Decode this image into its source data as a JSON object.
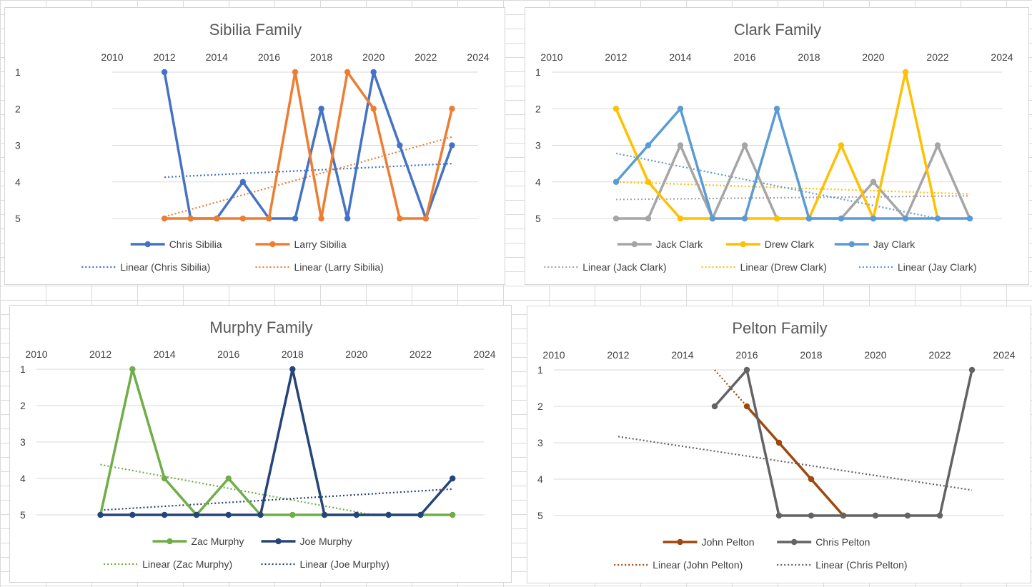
{
  "chart_data": [
    {
      "type": "line",
      "title": "Sibilia Family",
      "xlabel": "",
      "ylabel": "",
      "xlim": [
        2010,
        2024
      ],
      "ylim": [
        1,
        5
      ],
      "y_reversed": true,
      "x_ticks": [
        "2010",
        "2012",
        "2014",
        "2016",
        "2018",
        "2020",
        "2022",
        "2024"
      ],
      "y_ticks": [
        "1",
        "2",
        "3",
        "4",
        "5"
      ],
      "grid": true,
      "legend_position": "bottom",
      "series": [
        {
          "name": "Chris Sibilia",
          "color": "#4472c4",
          "x": [
            2012,
            2013,
            2014,
            2015,
            2016,
            2017,
            2018,
            2019,
            2020,
            2021,
            2022,
            2023
          ],
          "y": [
            1,
            5,
            5,
            4,
            5,
            5,
            2,
            5,
            1,
            3,
            5,
            3
          ]
        },
        {
          "name": "Larry Sibilia",
          "color": "#ed7d31",
          "x": [
            2012,
            2013,
            2014,
            2015,
            2016,
            2017,
            2018,
            2019,
            2020,
            2021,
            2022,
            2023
          ],
          "y": [
            5,
            5,
            5,
            5,
            5,
            1,
            5,
            1,
            2,
            5,
            5,
            2
          ]
        }
      ],
      "trendlines": [
        {
          "name": "Linear (Chris Sibilia)",
          "color": "#4472c4",
          "x": [
            2012,
            2023
          ],
          "y": [
            3.87,
            3.5
          ]
        },
        {
          "name": "Linear (Larry Sibilia)",
          "color": "#ed7d31",
          "x": [
            2012,
            2023
          ],
          "y": [
            4.95,
            2.77
          ]
        }
      ]
    },
    {
      "type": "line",
      "title": "Clark Family",
      "xlabel": "",
      "ylabel": "",
      "xlim": [
        2010,
        2024
      ],
      "ylim": [
        1,
        5
      ],
      "y_reversed": true,
      "x_ticks": [
        "2010",
        "2012",
        "2014",
        "2016",
        "2018",
        "2020",
        "2022",
        "2024"
      ],
      "y_ticks": [
        "1",
        "2",
        "3",
        "4",
        "5"
      ],
      "grid": true,
      "legend_position": "bottom",
      "series": [
        {
          "name": "Jack Clark",
          "color": "#a5a5a5",
          "x": [
            2012,
            2013,
            2014,
            2015,
            2016,
            2017,
            2018,
            2019,
            2020,
            2021,
            2022,
            2023
          ],
          "y": [
            5,
            5,
            3,
            5,
            3,
            5,
            5,
            5,
            4,
            5,
            3,
            5
          ]
        },
        {
          "name": "Drew Clark",
          "color": "#ffc000",
          "x": [
            2012,
            2013,
            2014,
            2015,
            2016,
            2017,
            2018,
            2019,
            2020,
            2021,
            2022
          ],
          "y": [
            2,
            4,
            5,
            5,
            5,
            5,
            5,
            3,
            5,
            1,
            5
          ]
        },
        {
          "name": "Jay Clark",
          "color": "#5b9bd5",
          "x": [
            2012,
            2013,
            2014,
            2015,
            2016,
            2017,
            2018,
            2019,
            2020,
            2021,
            2022,
            2023
          ],
          "y": [
            4,
            3,
            2,
            5,
            5,
            2,
            5,
            5,
            5,
            5,
            5,
            5
          ]
        }
      ],
      "trendlines": [
        {
          "name": "Linear (Jack Clark)",
          "color": "#a5a5a5",
          "x": [
            2012,
            2023
          ],
          "y": [
            4.48,
            4.38
          ]
        },
        {
          "name": "Linear (Drew Clark)",
          "color": "#ffc000",
          "x": [
            2012,
            2023
          ],
          "y": [
            4.0,
            4.33
          ]
        },
        {
          "name": "Linear (Jay Clark)",
          "color": "#5b9bd5",
          "x": [
            2012,
            2022
          ],
          "y": [
            3.22,
            5.0
          ]
        }
      ]
    },
    {
      "type": "line",
      "title": "Murphy Family",
      "xlabel": "",
      "ylabel": "",
      "xlim": [
        2010,
        2024
      ],
      "ylim": [
        1,
        5
      ],
      "y_reversed": true,
      "x_ticks": [
        "2010",
        "2012",
        "2014",
        "2016",
        "2018",
        "2020",
        "2022",
        "2024"
      ],
      "y_ticks": [
        "1",
        "2",
        "3",
        "4",
        "5"
      ],
      "grid": true,
      "legend_position": "bottom",
      "series": [
        {
          "name": "Zac Murphy",
          "color": "#70ad47",
          "x": [
            2012,
            2013,
            2014,
            2015,
            2016,
            2017,
            2018,
            2019,
            2020,
            2021,
            2022,
            2023
          ],
          "y": [
            5,
            1,
            4,
            5,
            4,
            5,
            5,
            5,
            5,
            5,
            5,
            5
          ]
        },
        {
          "name": "Joe Murphy",
          "color": "#264478",
          "x": [
            2012,
            2013,
            2014,
            2015,
            2016,
            2017,
            2018,
            2019,
            2020,
            2021,
            2022,
            2023
          ],
          "y": [
            5,
            5,
            5,
            5,
            5,
            5,
            1,
            5,
            5,
            5,
            5,
            4
          ]
        }
      ],
      "trendlines": [
        {
          "name": "Linear (Zac Murphy)",
          "color": "#70ad47",
          "x": [
            2012,
            2020.5
          ],
          "y": [
            3.62,
            5.0
          ]
        },
        {
          "name": "Linear (Joe Murphy)",
          "color": "#264478",
          "x": [
            2012,
            2023
          ],
          "y": [
            4.87,
            4.29
          ]
        }
      ]
    },
    {
      "type": "line",
      "title": "Pelton Family",
      "xlabel": "",
      "ylabel": "",
      "xlim": [
        2010,
        2024
      ],
      "ylim": [
        1,
        5
      ],
      "y_reversed": true,
      "x_ticks": [
        "2010",
        "2012",
        "2014",
        "2016",
        "2018",
        "2020",
        "2022",
        "2024"
      ],
      "y_ticks": [
        "1",
        "2",
        "3",
        "4",
        "5"
      ],
      "grid": true,
      "legend_position": "bottom",
      "series": [
        {
          "name": "John Pelton",
          "color": "#9e480e",
          "x": [
            2016,
            2017,
            2018,
            2019
          ],
          "y": [
            2,
            3,
            4,
            5
          ]
        },
        {
          "name": "Chris Pelton",
          "color": "#636363",
          "x": [
            2015,
            2016,
            2017,
            2018,
            2019,
            2020,
            2021,
            2022,
            2023
          ],
          "y": [
            2,
            1,
            5,
            5,
            5,
            5,
            5,
            5,
            1
          ]
        }
      ],
      "trendlines": [
        {
          "name": "Linear (John Pelton)",
          "color": "#9e480e",
          "x": [
            2015,
            2016
          ],
          "y": [
            1.0,
            2.0
          ]
        },
        {
          "name": "Linear (Chris Pelton)",
          "color": "#636363",
          "x": [
            2012,
            2023
          ],
          "y": [
            2.83,
            4.3
          ]
        }
      ]
    }
  ]
}
